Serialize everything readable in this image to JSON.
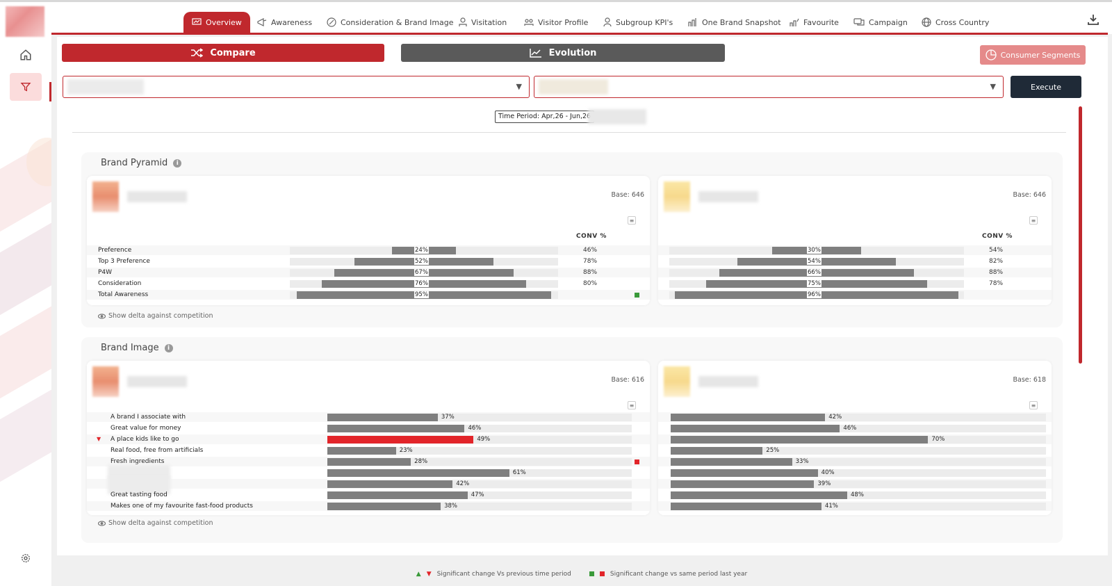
{
  "nav": {
    "tabs": [
      {
        "label": "Overview",
        "icon": "chart-screen-icon",
        "active": true
      },
      {
        "label": "Awareness",
        "icon": "megaphone-icon"
      },
      {
        "label": "Consideration & Brand Image",
        "icon": "brand-image-icon"
      },
      {
        "label": "Visitation",
        "icon": "visitor-icon"
      },
      {
        "label": "Visitor Profile",
        "icon": "group-icon"
      },
      {
        "label": "Subgroup KPI's",
        "icon": "user-icon"
      },
      {
        "label": "One Brand Snapshot",
        "icon": "snapshot-icon"
      },
      {
        "label": "Favourite",
        "icon": "favourite-icon"
      },
      {
        "label": "Campaign",
        "icon": "campaign-icon"
      },
      {
        "label": "Cross Country",
        "icon": "globe-icon"
      }
    ],
    "download_icon": "download-icon"
  },
  "sidebar": {
    "icons": [
      "home-icon",
      "filter-icon",
      "settings-icon"
    ]
  },
  "toolbar": {
    "compare_label": "Compare",
    "evolution_label": "Evolution",
    "segments_label": "Consumer Segments",
    "execute_label": "Execute",
    "dropdown_arrow": "▼"
  },
  "time_period": "Time Period: Apr,26 - Jun,26",
  "brand_pyramid": {
    "title": "Brand Pyramid",
    "conv_header": "CONV %",
    "show_delta": "Show delta against competition",
    "left": {
      "base": "Base: 646",
      "rows": [
        {
          "label": "Preference",
          "value": 24,
          "text": "24%",
          "conv": "46%"
        },
        {
          "label": "Top 3 Preference",
          "value": 52,
          "text": "52%",
          "conv": "78%"
        },
        {
          "label": "P4W",
          "value": 67,
          "text": "67%",
          "conv": "88%"
        },
        {
          "label": "Consideration",
          "value": 76,
          "text": "76%",
          "conv": "80%"
        },
        {
          "label": "Total Awareness",
          "value": 95,
          "text": "95%",
          "conv": ""
        }
      ]
    },
    "right": {
      "base": "Base: 646",
      "rows": [
        {
          "value": 30,
          "text": "30%",
          "conv": "54%"
        },
        {
          "value": 54,
          "text": "54%",
          "conv": "82%"
        },
        {
          "value": 66,
          "text": "66%",
          "conv": "88%"
        },
        {
          "value": 75,
          "text": "75%",
          "conv": "78%"
        },
        {
          "value": 96,
          "text": "96%",
          "conv": ""
        }
      ]
    }
  },
  "brand_image": {
    "title": "Brand Image",
    "show_delta": "Show delta against competition",
    "left": {
      "base": "Base: 616",
      "rows": [
        {
          "label": "A brand I associate with",
          "value": 37,
          "text": "37%"
        },
        {
          "label": "Great value for money",
          "value": 46,
          "text": "46%"
        },
        {
          "label": "A place kids like to go",
          "value": 49,
          "text": "49%",
          "highlight": true
        },
        {
          "label": "Real food, free from artificials",
          "value": 23,
          "text": "23%"
        },
        {
          "label": "Fresh ingredients",
          "value": 28,
          "text": "28%"
        },
        {
          "label": "",
          "value": 61,
          "text": "61%"
        },
        {
          "label": "",
          "value": 42,
          "text": "42%"
        },
        {
          "label": "Great tasting food",
          "value": 47,
          "text": "47%"
        },
        {
          "label": "Makes one of my favourite fast-food products",
          "value": 38,
          "text": "38%"
        }
      ]
    },
    "right": {
      "base": "Base: 618",
      "rows": [
        {
          "value": 42,
          "text": "42%"
        },
        {
          "value": 46,
          "text": "46%"
        },
        {
          "value": 70,
          "text": "70%"
        },
        {
          "value": 25,
          "text": "25%"
        },
        {
          "value": 33,
          "text": "33%"
        },
        {
          "value": 40,
          "text": "40%"
        },
        {
          "value": 39,
          "text": "39%"
        },
        {
          "value": 48,
          "text": "48%"
        },
        {
          "value": 41,
          "text": "41%"
        }
      ]
    }
  },
  "footer": {
    "text1": "Significant change Vs previous time period",
    "text2": "Significant change vs same period last year"
  },
  "colors": {
    "brand_red": "#c0282d",
    "bar_gray": "#7f7f7f",
    "sig_green": "#3a9a3a",
    "sig_red": "#e2252a"
  }
}
